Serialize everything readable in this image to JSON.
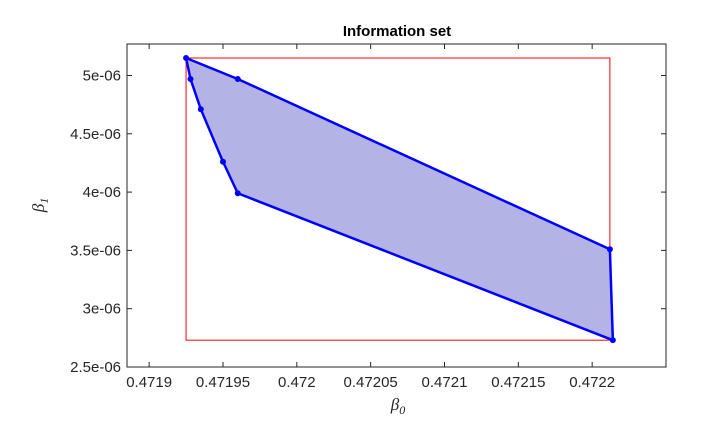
{
  "chart_data": {
    "type": "area",
    "title": "Information set",
    "xlabel": "β",
    "xlabel_sub": "0",
    "ylabel": "β",
    "ylabel_sub": "1",
    "xlim": [
      0.471885,
      0.47225
    ],
    "ylim": [
      2.5e-06,
      5.27e-06
    ],
    "xticks": [
      0.4719,
      0.47195,
      0.472,
      0.47205,
      0.4721,
      0.47215,
      0.4722
    ],
    "xtick_labels": [
      "0.4719",
      "0.47195",
      "0.472",
      "0.47205",
      "0.4721",
      "0.47215",
      "0.4722"
    ],
    "yticks": [
      2.5e-06,
      3e-06,
      3.5e-06,
      4e-06,
      4.5e-06,
      5e-06
    ],
    "ytick_labels": [
      "2.5e-06",
      "3e-06",
      "3.5e-06",
      "4e-06",
      "4.5e-06",
      "5e-06"
    ],
    "grid": false,
    "series": [
      {
        "kind": "polygon",
        "points": [
          [
            0.471925,
            5.15e-06
          ],
          [
            0.47196,
            4.97e-06
          ],
          [
            0.472212,
            3.51e-06
          ],
          [
            0.472214,
            2.73e-06
          ],
          [
            0.47196,
            3.99e-06
          ],
          [
            0.47195,
            4.26e-06
          ],
          [
            0.471935,
            4.71e-06
          ],
          [
            0.471928,
            4.97e-06
          ]
        ],
        "fill_color": "#b3b3e6",
        "edge_color": "#0000ff"
      },
      {
        "kind": "rectangle",
        "x": [
          0.471925,
          0.472212
        ],
        "y": [
          2.73e-06,
          5.15e-06
        ],
        "edge_color": "#ff0000"
      }
    ]
  }
}
